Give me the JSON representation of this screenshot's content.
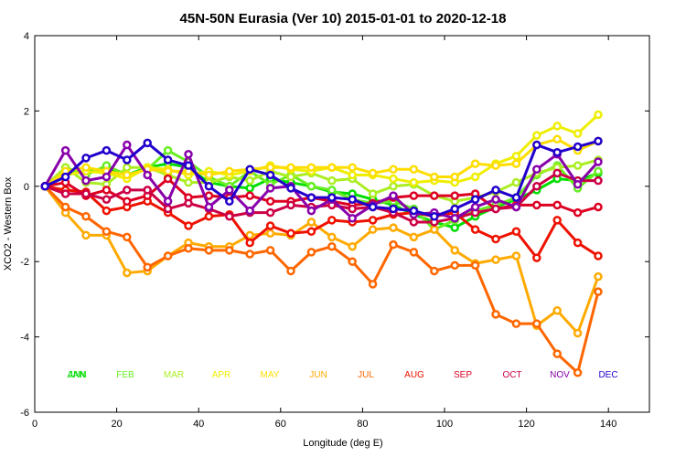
{
  "chart_data": {
    "type": "line",
    "title": "45N-50N Eurasia (Ver 10)   2015-01-01 to 2020-12-18",
    "xlabel": "Longitude (deg E)",
    "ylabel": "XCO2 - Western Box",
    "xlim": [
      0,
      150
    ],
    "ylim": [
      -6,
      4
    ],
    "xticks": [
      0,
      20,
      40,
      60,
      80,
      100,
      120,
      140
    ],
    "yticks": [
      -6,
      -4,
      -2,
      0,
      2,
      4
    ],
    "x": [
      2.5,
      7.5,
      12.5,
      17.5,
      22.5,
      27.5,
      32.5,
      37.5,
      42.5,
      47.5,
      52.5,
      57.5,
      62.5,
      67.5,
      72.5,
      77.5,
      82.5,
      87.5,
      92.5,
      97.5,
      102.5,
      107.5,
      112.5,
      117.5,
      122.5,
      127.5,
      132.5,
      137.5
    ],
    "series": [
      {
        "name": "JAN",
        "color": "#00dd00",
        "values": [
          0.0,
          0.3,
          0.4,
          0.45,
          0.3,
          0.5,
          0.6,
          0.5,
          0.1,
          0.0,
          -0.05,
          0.2,
          0.1,
          0.0,
          -0.15,
          -0.2,
          -0.35,
          -0.5,
          -0.75,
          -0.95,
          -1.1,
          -0.8,
          -0.55,
          -0.35,
          -0.1,
          0.2,
          0.15,
          0.35
        ]
      },
      {
        "name": "ANN",
        "color": "#00dd00",
        "values": [
          0.0,
          0.1,
          0.05,
          0.05,
          0.0,
          0.0,
          0.05,
          0.0,
          -0.1,
          -0.15,
          -0.2,
          -0.2,
          -0.2,
          -0.25,
          -0.3,
          -0.35,
          -0.4,
          -0.45,
          -0.5,
          -0.6,
          -0.7,
          -0.75,
          -0.75,
          -0.8,
          -0.85,
          -0.9,
          -1.0,
          -0.9
        ]
      },
      {
        "name": "FEB",
        "color": "#66ee22",
        "values": [
          0.0,
          0.5,
          0.3,
          0.55,
          0.3,
          0.45,
          0.95,
          0.65,
          0.25,
          0.0,
          0.4,
          0.05,
          0.3,
          0.0,
          -0.1,
          -0.35,
          -0.45,
          -0.4,
          -0.6,
          -1.15,
          -0.9,
          -0.65,
          -0.5,
          -0.3,
          0.3,
          0.55,
          -0.05,
          0.4
        ]
      },
      {
        "name": "MAR",
        "color": "#aaee22",
        "values": [
          0.0,
          0.5,
          0.1,
          0.05,
          0.5,
          0.5,
          0.3,
          0.1,
          0.1,
          0.25,
          0.15,
          0.4,
          0.25,
          0.35,
          0.15,
          0.2,
          -0.2,
          0.0,
          0.05,
          -0.25,
          -0.4,
          -0.3,
          -0.15,
          0.1,
          0.35,
          0.5,
          0.55,
          0.7
        ]
      },
      {
        "name": "APR",
        "color": "#eeee00",
        "values": [
          0.0,
          0.3,
          0.4,
          0.35,
          0.2,
          0.5,
          0.45,
          0.3,
          0.4,
          0.3,
          0.4,
          0.55,
          0.45,
          0.4,
          0.5,
          0.3,
          0.3,
          0.2,
          0.1,
          0.15,
          0.1,
          0.25,
          0.6,
          0.8,
          1.35,
          1.6,
          1.4,
          1.9
        ]
      },
      {
        "name": "MAY",
        "color": "#ffdd00",
        "values": [
          0.0,
          0.4,
          0.5,
          0.4,
          0.3,
          0.45,
          0.4,
          0.4,
          0.3,
          0.4,
          0.45,
          0.5,
          0.5,
          0.5,
          0.5,
          0.5,
          0.35,
          0.45,
          0.45,
          0.25,
          0.25,
          0.6,
          0.55,
          0.6,
          1.1,
          1.25,
          0.95,
          1.2
        ]
      },
      {
        "name": "JUN",
        "color": "#ffaa00",
        "values": [
          0.0,
          -0.7,
          -1.3,
          -1.3,
          -2.3,
          -2.25,
          -1.85,
          -1.5,
          -1.6,
          -1.6,
          -1.3,
          -1.25,
          -1.3,
          -0.95,
          -1.35,
          -1.6,
          -1.15,
          -1.1,
          -1.35,
          -1.15,
          -1.7,
          -2.05,
          -1.95,
          -1.85,
          -3.7,
          -3.3,
          -3.9,
          -2.4
        ]
      },
      {
        "name": "JUL",
        "color": "#ff6600",
        "values": [
          0.0,
          -0.55,
          -0.8,
          -1.2,
          -1.35,
          -2.15,
          -1.85,
          -1.65,
          -1.7,
          -1.7,
          -1.8,
          -1.7,
          -2.25,
          -1.75,
          -1.6,
          -2.0,
          -2.6,
          -1.55,
          -1.75,
          -2.25,
          -2.1,
          -2.1,
          -3.4,
          -3.65,
          -3.65,
          -4.45,
          -4.95,
          -2.8
        ]
      },
      {
        "name": "AUG",
        "color": "#ee1100",
        "values": [
          0.0,
          -0.1,
          -0.15,
          -0.65,
          -0.55,
          -0.4,
          -0.7,
          -1.05,
          -0.8,
          -0.75,
          -1.5,
          -1.05,
          -1.25,
          -1.2,
          -0.9,
          -0.95,
          -0.9,
          -0.75,
          -0.7,
          -0.8,
          -0.7,
          -1.15,
          -1.4,
          -1.2,
          -1.9,
          -0.9,
          -1.5,
          -1.85
        ]
      },
      {
        "name": "SEP",
        "color": "#dd0022",
        "values": [
          0.0,
          0.1,
          -0.25,
          -0.1,
          -0.4,
          -0.25,
          0.2,
          -0.3,
          -0.25,
          -0.3,
          -0.25,
          -0.4,
          -0.4,
          -0.3,
          -0.4,
          -0.5,
          -0.45,
          -0.3,
          -0.25,
          -0.25,
          -0.25,
          -0.2,
          -0.6,
          -0.5,
          -0.5,
          -0.5,
          -0.7,
          -0.55
        ]
      },
      {
        "name": "OCT",
        "color": "#cc0044",
        "values": [
          0.0,
          -0.2,
          -0.2,
          -0.35,
          -0.1,
          -0.1,
          -0.6,
          -0.45,
          -0.6,
          -0.8,
          -0.7,
          -0.7,
          -0.5,
          -0.55,
          -0.5,
          -0.6,
          -0.55,
          -0.7,
          -0.95,
          -0.95,
          -0.85,
          -0.7,
          -0.6,
          -0.55,
          0.0,
          0.35,
          0.15,
          0.15
        ]
      },
      {
        "name": "NOV",
        "color": "#8800aa",
        "values": [
          0.0,
          0.95,
          0.15,
          0.25,
          1.1,
          0.3,
          -0.4,
          0.85,
          -0.55,
          -0.1,
          -0.65,
          -0.05,
          0.0,
          -0.65,
          -0.35,
          -0.85,
          -0.5,
          -0.25,
          -0.75,
          -0.7,
          -0.85,
          -0.55,
          -0.35,
          -0.55,
          0.45,
          0.85,
          0.05,
          0.65
        ]
      },
      {
        "name": "DEC",
        "color": "#2200cc",
        "values": [
          0.0,
          0.25,
          0.75,
          0.95,
          0.7,
          1.15,
          0.7,
          0.55,
          0.0,
          -0.4,
          0.45,
          0.3,
          -0.05,
          -0.3,
          -0.3,
          -0.35,
          -0.55,
          -0.6,
          -0.65,
          -0.8,
          -0.6,
          -0.35,
          -0.1,
          -0.3,
          1.1,
          0.9,
          1.05,
          1.2
        ]
      }
    ],
    "legend": {
      "placement": "bottom-inside",
      "entries": [
        {
          "name": "JAN",
          "color": "#00dd00"
        },
        {
          "name": "ANN",
          "color": "#00dd00"
        },
        {
          "name": "FEB",
          "color": "#66ee22"
        },
        {
          "name": "MAR",
          "color": "#aaee22"
        },
        {
          "name": "APR",
          "color": "#eeee00"
        },
        {
          "name": "MAY",
          "color": "#ffdd00"
        },
        {
          "name": "JUN",
          "color": "#ffaa00"
        },
        {
          "name": "JUL",
          "color": "#ff6600"
        },
        {
          "name": "AUG",
          "color": "#ee1100"
        },
        {
          "name": "SEP",
          "color": "#dd0022"
        },
        {
          "name": "OCT",
          "color": "#cc0044"
        },
        {
          "name": "NOV",
          "color": "#8800aa"
        },
        {
          "name": "DEC",
          "color": "#2200cc"
        }
      ]
    }
  }
}
